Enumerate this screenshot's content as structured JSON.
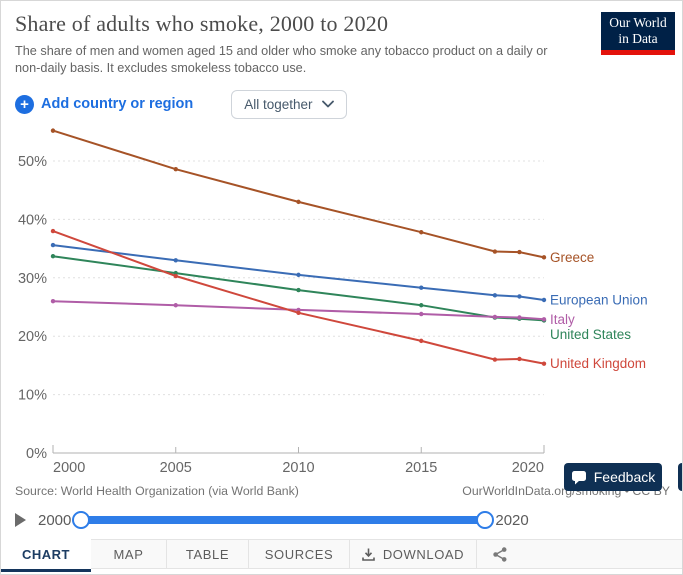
{
  "header": {
    "title": "Share of adults who smoke, 2000 to 2020",
    "subtitle": "The share of men and women aged 15 and older who smoke any tobacco product on a daily or non-daily basis. It excludes smokeless tobacco use.",
    "logo": {
      "line1": "Our World",
      "line2": "in Data"
    }
  },
  "controls": {
    "add_label": "Add country or region",
    "plus_glyph": "+",
    "entity_mode": "All together"
  },
  "chart_data": {
    "type": "line",
    "title": "Share of adults who smoke, 2000 to 2020",
    "x": [
      2000,
      2005,
      2010,
      2015,
      2018,
      2019,
      2020
    ],
    "series": [
      {
        "name": "Greece",
        "color": "#A65327",
        "values": [
          55.2,
          48.6,
          43.0,
          37.8,
          34.5,
          34.4,
          33.5
        ]
      },
      {
        "name": "European Union",
        "color": "#3A6CB5",
        "values": [
          35.6,
          33.0,
          30.5,
          28.3,
          27.0,
          26.8,
          26.2
        ]
      },
      {
        "name": "United States",
        "color": "#2F855A",
        "values": [
          33.7,
          30.8,
          27.9,
          25.3,
          23.2,
          23.0,
          22.7
        ]
      },
      {
        "name": "Italy",
        "color": "#B05DA7",
        "values": [
          26.0,
          25.3,
          24.5,
          23.8,
          23.3,
          23.2,
          22.9
        ]
      },
      {
        "name": "United Kingdom",
        "color": "#CF483C",
        "values": [
          38.0,
          30.3,
          24.0,
          19.2,
          16.0,
          16.1,
          15.3
        ]
      }
    ],
    "ylim": [
      0,
      57
    ],
    "yticks": [
      0,
      10,
      20,
      30,
      40,
      50
    ],
    "ytick_suffix": "%",
    "xticks": [
      2000,
      2005,
      2010,
      2015,
      2020
    ],
    "grid": "horizontal-dashed",
    "legend_position": "right-end-labels"
  },
  "footer": {
    "source": "Source: World Health Organization (via World Bank)",
    "attribution": "OurWorldInData.org/smoking • CC BY",
    "feedback_label": "Feedback"
  },
  "timeline": {
    "start_year": "2000",
    "end_year": "2020"
  },
  "tabs": {
    "items": [
      {
        "label": "CHART"
      },
      {
        "label": "MAP"
      },
      {
        "label": "TABLE"
      },
      {
        "label": "SOURCES"
      },
      {
        "label": "DOWNLOAD"
      }
    ],
    "active": "CHART"
  },
  "colors": {
    "accent_blue": "#1d6ee0",
    "navy": "#002147",
    "logo_red": "#e3120b",
    "slider_blue": "#2e7de8",
    "axis_text": "#666666",
    "grid_line": "#e0e0e0",
    "axis_line": "#b2b2b2"
  }
}
